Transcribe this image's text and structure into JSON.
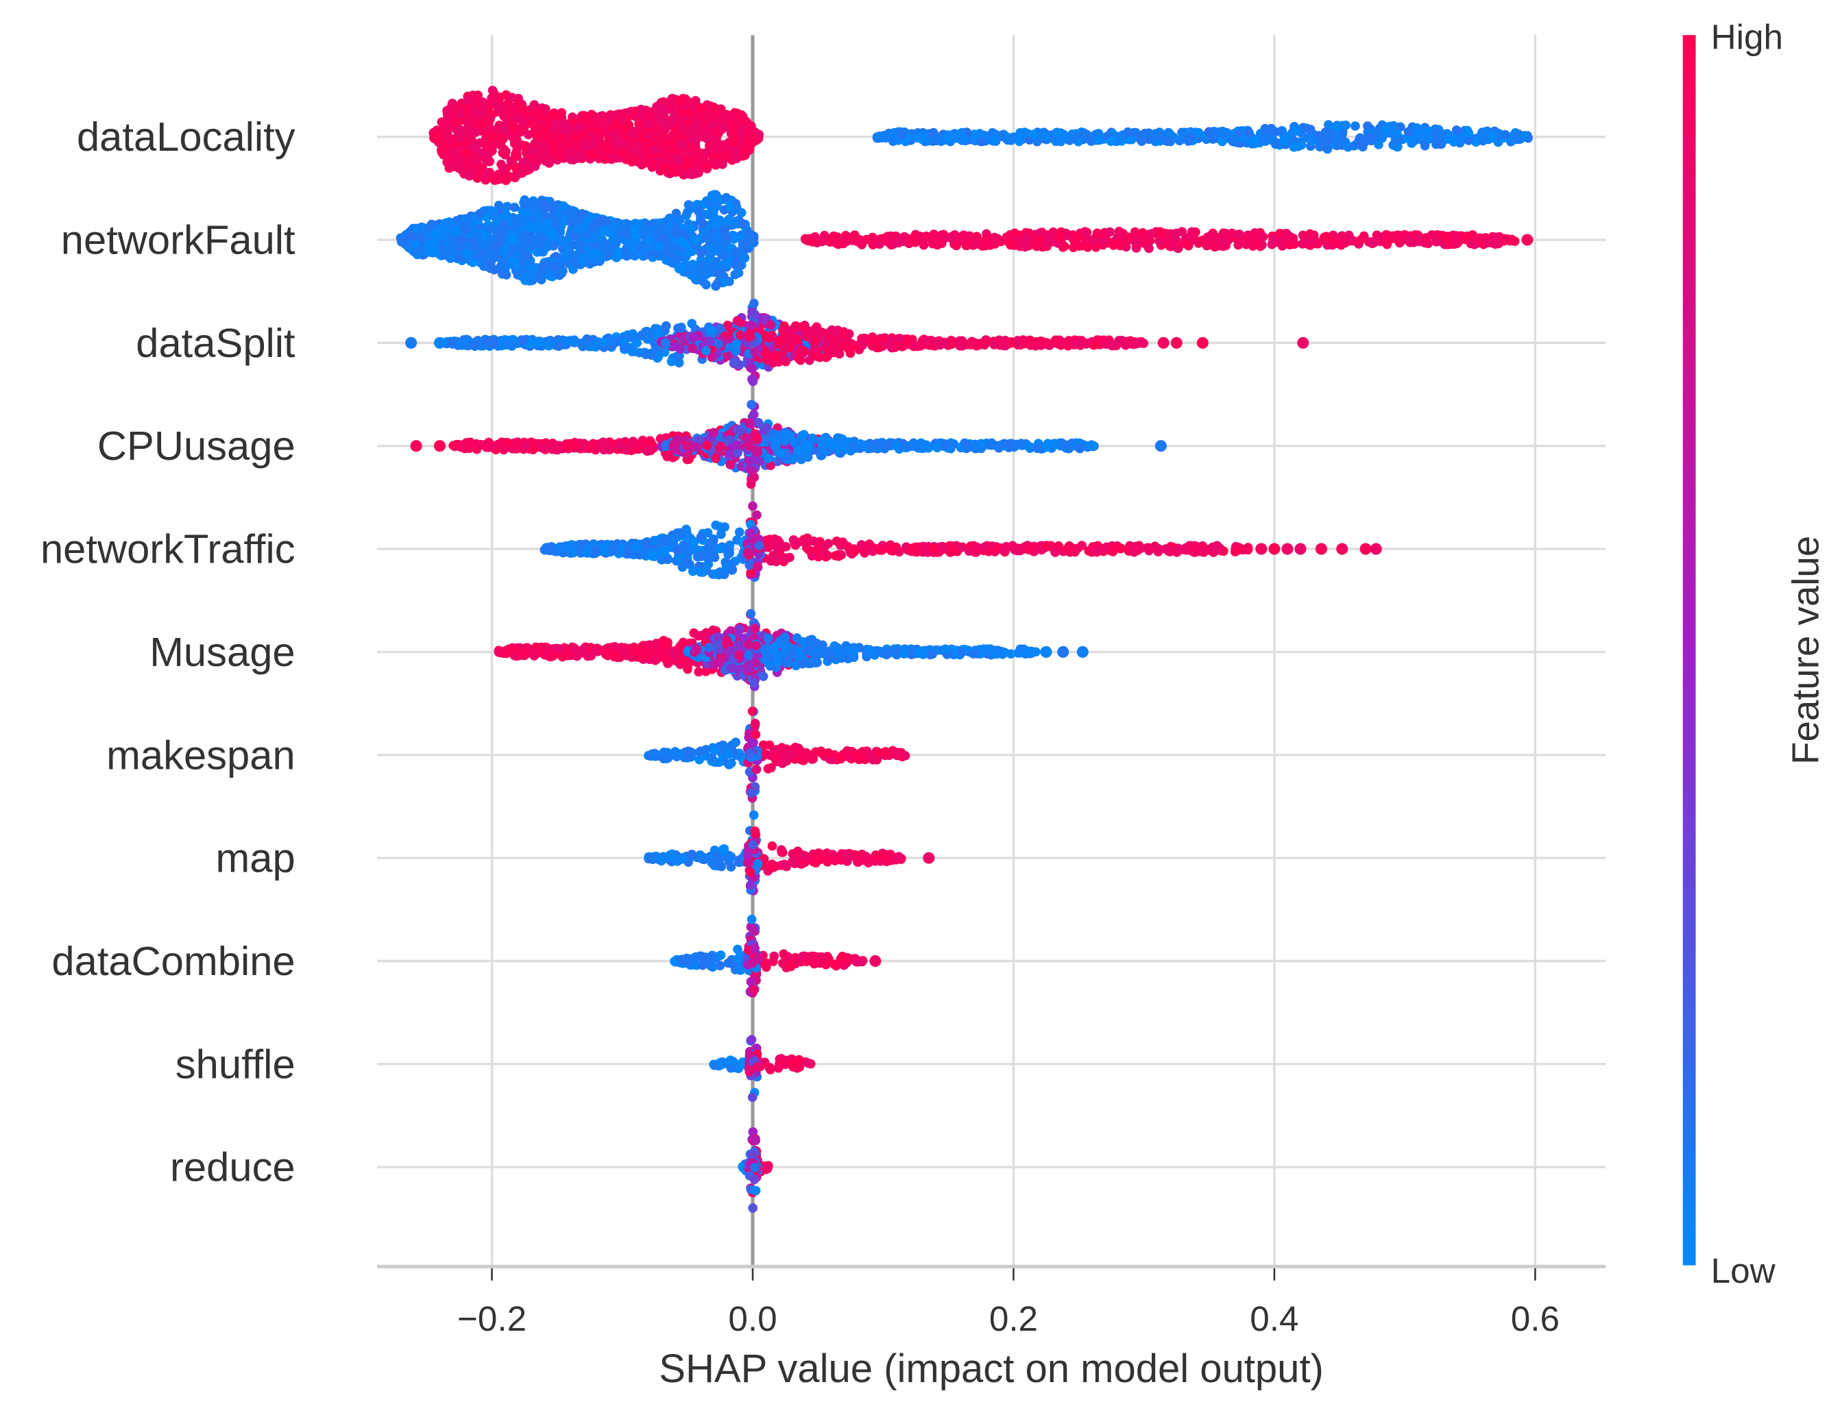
{
  "chart_data": {
    "type": "scatter",
    "subtype": "shap-beeswarm",
    "xlabel": "SHAP value (impact on model output)",
    "xlim": [
      -0.288,
      0.654
    ],
    "xticks": [
      -0.2,
      0.0,
      0.2,
      0.4,
      0.6
    ],
    "xtick_labels": [
      "−0.2",
      "0.0",
      "0.2",
      "0.4",
      "0.6"
    ],
    "grid": true,
    "colorbar": {
      "label": "Feature value",
      "high_label": "High",
      "low_label": "Low",
      "low_color": "#008bfb",
      "mid_color": "#a020c8",
      "high_color": "#ff0052",
      "placement": "right"
    },
    "features": [
      {
        "name": "dataLocality",
        "segments": [
          {
            "value": "high",
            "from": -0.245,
            "to": 0.005,
            "base": 0.45,
            "peaks": [
              [
                -0.2,
                0.035,
                0.5
              ],
              [
                -0.055,
                0.03,
                0.35
              ]
            ]
          },
          {
            "value": "low",
            "from": 0.095,
            "to": 0.595,
            "base": 0.1,
            "peaks": [
              [
                0.46,
                0.07,
                0.17
              ]
            ]
          }
        ],
        "outliers": []
      },
      {
        "name": "networkFault",
        "segments": [
          {
            "value": "low",
            "from": -0.27,
            "to": 0.001,
            "base": 0.3,
            "peaks": [
              [
                -0.17,
                0.045,
                0.55
              ],
              [
                -0.03,
                0.03,
                0.65
              ]
            ]
          },
          {
            "value": "high",
            "from": 0.04,
            "to": 0.585,
            "base": 0.1,
            "peaks": [
              [
                0.3,
                0.12,
                0.08
              ]
            ]
          }
        ],
        "outliers": [
          {
            "value": "high",
            "x": [
              0.576,
              0.594
            ]
          }
        ]
      },
      {
        "name": "dataSplit",
        "segments": [
          {
            "value": "low",
            "from": -0.235,
            "to": -0.01,
            "base": 0.07,
            "peaks": [
              [
                -0.05,
                0.04,
                0.35
              ]
            ]
          },
          {
            "value": "mixed",
            "from": -0.07,
            "to": 0.07,
            "base": 0.1,
            "peaks": [
              [
                0.0,
                0.035,
                0.45
              ]
            ]
          },
          {
            "value": "high",
            "from": 0.0,
            "to": 0.3,
            "base": 0.06,
            "peaks": [
              [
                0.02,
                0.06,
                0.35
              ]
            ]
          },
          {
            "value": "mixed",
            "from": -0.004,
            "to": 0.004,
            "base": 0.9,
            "peaks": []
          }
        ],
        "outliers": [
          {
            "value": "low",
            "x": [
              -0.262,
              -0.24
            ]
          },
          {
            "value": "high",
            "x": [
              0.315,
              0.325,
              0.345,
              0.422
            ]
          }
        ]
      },
      {
        "name": "CPUusage",
        "segments": [
          {
            "value": "high",
            "from": -0.23,
            "to": -0.01,
            "base": 0.08,
            "peaks": [
              [
                -0.03,
                0.04,
                0.3
              ]
            ]
          },
          {
            "value": "mixed",
            "from": -0.07,
            "to": 0.07,
            "base": 0.1,
            "peaks": [
              [
                0.0,
                0.035,
                0.4
              ]
            ]
          },
          {
            "value": "low",
            "from": 0.0,
            "to": 0.265,
            "base": 0.06,
            "peaks": [
              [
                0.02,
                0.05,
                0.25
              ]
            ]
          },
          {
            "value": "mixed",
            "from": -0.004,
            "to": 0.004,
            "base": 0.9,
            "peaks": []
          }
        ],
        "outliers": [
          {
            "value": "high",
            "x": [
              -0.258,
              -0.24
            ]
          },
          {
            "value": "low",
            "x": [
              0.313
            ]
          }
        ]
      },
      {
        "name": "networkTraffic",
        "segments": [
          {
            "value": "low",
            "from": -0.16,
            "to": 0.0,
            "base": 0.1,
            "peaks": [
              [
                -0.03,
                0.035,
                0.45
              ]
            ]
          },
          {
            "value": "high",
            "from": 0.0,
            "to": 0.38,
            "base": 0.07,
            "peaks": [
              [
                0.02,
                0.05,
                0.2
              ]
            ]
          },
          {
            "value": "mixed",
            "from": -0.004,
            "to": 0.006,
            "base": 0.9,
            "peaks": []
          }
        ],
        "outliers": [
          {
            "value": "high",
            "x": [
              0.39,
              0.4,
              0.41,
              0.42,
              0.436,
              0.452,
              0.47,
              0.478
            ]
          }
        ]
      },
      {
        "name": "Musage",
        "segments": [
          {
            "value": "high",
            "from": -0.195,
            "to": -0.005,
            "base": 0.1,
            "peaks": [
              [
                -0.03,
                0.04,
                0.35
              ]
            ]
          },
          {
            "value": "mixed",
            "from": -0.05,
            "to": 0.05,
            "base": 0.15,
            "peaks": [
              [
                0.0,
                0.03,
                0.4
              ]
            ]
          },
          {
            "value": "low",
            "from": 0.0,
            "to": 0.22,
            "base": 0.06,
            "peaks": [
              [
                0.02,
                0.05,
                0.25
              ]
            ]
          },
          {
            "value": "mixed",
            "from": -0.004,
            "to": 0.004,
            "base": 0.9,
            "peaks": []
          }
        ],
        "outliers": [
          {
            "value": "low",
            "x": [
              0.225,
              0.238,
              0.253
            ]
          }
        ]
      },
      {
        "name": "makespan",
        "segments": [
          {
            "value": "low",
            "from": -0.08,
            "to": 0.0,
            "base": 0.08,
            "peaks": [
              [
                -0.01,
                0.02,
                0.2
              ]
            ]
          },
          {
            "value": "high",
            "from": 0.0,
            "to": 0.12,
            "base": 0.1,
            "peaks": [
              [
                0.01,
                0.02,
                0.2
              ]
            ]
          },
          {
            "value": "mixed",
            "from": -0.004,
            "to": 0.004,
            "base": 0.9,
            "peaks": []
          }
        ],
        "outliers": []
      },
      {
        "name": "map",
        "segments": [
          {
            "value": "low",
            "from": -0.08,
            "to": 0.0,
            "base": 0.08,
            "peaks": [
              [
                -0.01,
                0.02,
                0.2
              ]
            ]
          },
          {
            "value": "high",
            "from": 0.0,
            "to": 0.115,
            "base": 0.1,
            "peaks": [
              [
                0.01,
                0.02,
                0.2
              ]
            ]
          },
          {
            "value": "mixed",
            "from": -0.004,
            "to": 0.004,
            "base": 0.9,
            "peaks": []
          }
        ],
        "outliers": [
          {
            "value": "high",
            "x": [
              0.135
            ]
          }
        ]
      },
      {
        "name": "dataCombine",
        "segments": [
          {
            "value": "low",
            "from": -0.06,
            "to": 0.0,
            "base": 0.1,
            "peaks": [
              [
                -0.01,
                0.015,
                0.15
              ]
            ]
          },
          {
            "value": "high",
            "from": 0.0,
            "to": 0.085,
            "base": 0.1,
            "peaks": [
              [
                0.01,
                0.015,
                0.15
              ]
            ]
          },
          {
            "value": "mixed",
            "from": -0.004,
            "to": 0.004,
            "base": 0.9,
            "peaks": []
          }
        ],
        "outliers": [
          {
            "value": "high",
            "x": [
              0.094
            ]
          }
        ]
      },
      {
        "name": "shuffle",
        "segments": [
          {
            "value": "low",
            "from": -0.03,
            "to": 0.0,
            "base": 0.1,
            "peaks": []
          },
          {
            "value": "high",
            "from": 0.0,
            "to": 0.045,
            "base": 0.12,
            "peaks": []
          },
          {
            "value": "mixed",
            "from": -0.003,
            "to": 0.004,
            "base": 0.9,
            "peaks": []
          }
        ],
        "outliers": []
      },
      {
        "name": "reduce",
        "segments": [
          {
            "value": "low",
            "from": -0.008,
            "to": 0.0,
            "base": 0.1,
            "peaks": []
          },
          {
            "value": "high",
            "from": 0.0,
            "to": 0.012,
            "base": 0.1,
            "peaks": []
          },
          {
            "value": "mixed",
            "from": -0.003,
            "to": 0.004,
            "base": 0.9,
            "peaks": []
          }
        ],
        "outliers": []
      }
    ]
  }
}
